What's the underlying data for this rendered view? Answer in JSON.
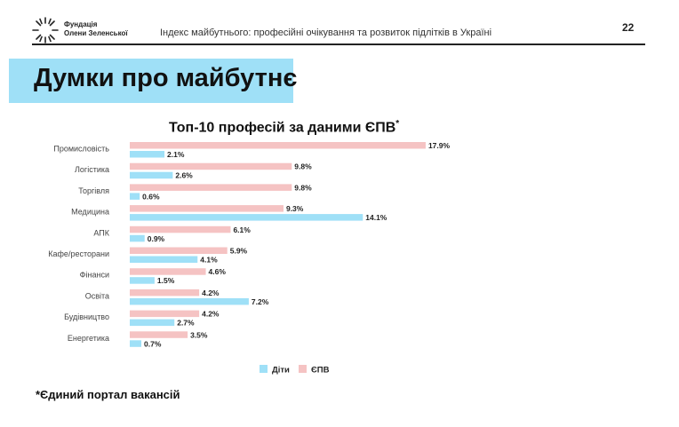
{
  "header": {
    "org_line1": "Фундація",
    "org_line2": "Олени Зеленської",
    "title": "Індекс майбутнього: професійні очікування та розвиток підлітків в Україні",
    "page_number": "22"
  },
  "banner": {
    "title": "Думки про майбутнє",
    "color": "#9fe0f7"
  },
  "footnote": "*Єдиний портал вакансій",
  "chart_data": {
    "type": "bar",
    "orientation": "horizontal",
    "title": "Топ-10 професій за даними ЄПВ",
    "title_marker": "*",
    "categories": [
      "Промисловість",
      "Логістика",
      "Торгівля",
      "Медицина",
      "АПК",
      "Кафе/ресторани",
      "Фінанси",
      "Освіта",
      "Будівництво",
      "Енергетика"
    ],
    "series": [
      {
        "name": "ЄПВ",
        "color": "#f5c3c3",
        "values": [
          17.9,
          9.8,
          9.8,
          9.3,
          6.1,
          5.9,
          4.6,
          4.2,
          4.2,
          3.5
        ]
      },
      {
        "name": "Діти",
        "color": "#9fe0f7",
        "values": [
          2.1,
          2.6,
          0.6,
          14.1,
          0.9,
          4.1,
          1.5,
          7.2,
          2.7,
          0.7
        ]
      }
    ],
    "value_suffix": "%",
    "legend": {
      "placement": "bottom",
      "order": [
        "Діти",
        "ЄПВ"
      ]
    },
    "grid": false
  }
}
